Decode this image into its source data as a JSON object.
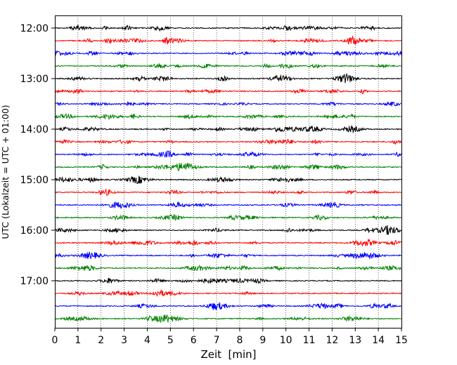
{
  "chart_data": {
    "type": "line",
    "title": "",
    "xlabel": "Zeit  [min]",
    "ylabel": "UTC (Lokalzeit = UTC + 01:00)",
    "xlim": [
      0,
      15
    ],
    "x_ticks": [
      "0",
      "1",
      "2",
      "3",
      "4",
      "5",
      "6",
      "7",
      "8",
      "9",
      "10",
      "11",
      "12",
      "13",
      "14",
      "15"
    ],
    "y_tick_labels": [
      "12:00",
      "13:00",
      "14:00",
      "15:00",
      "16:00",
      "17:00"
    ],
    "trace_interval_min": 15,
    "start_time": "12:00",
    "trace_count": 24,
    "trace_colors": [
      "#000000",
      "#ff0000",
      "#0000ff",
      "#008000"
    ],
    "vertical_grid": true,
    "grid_style": "dotted"
  }
}
